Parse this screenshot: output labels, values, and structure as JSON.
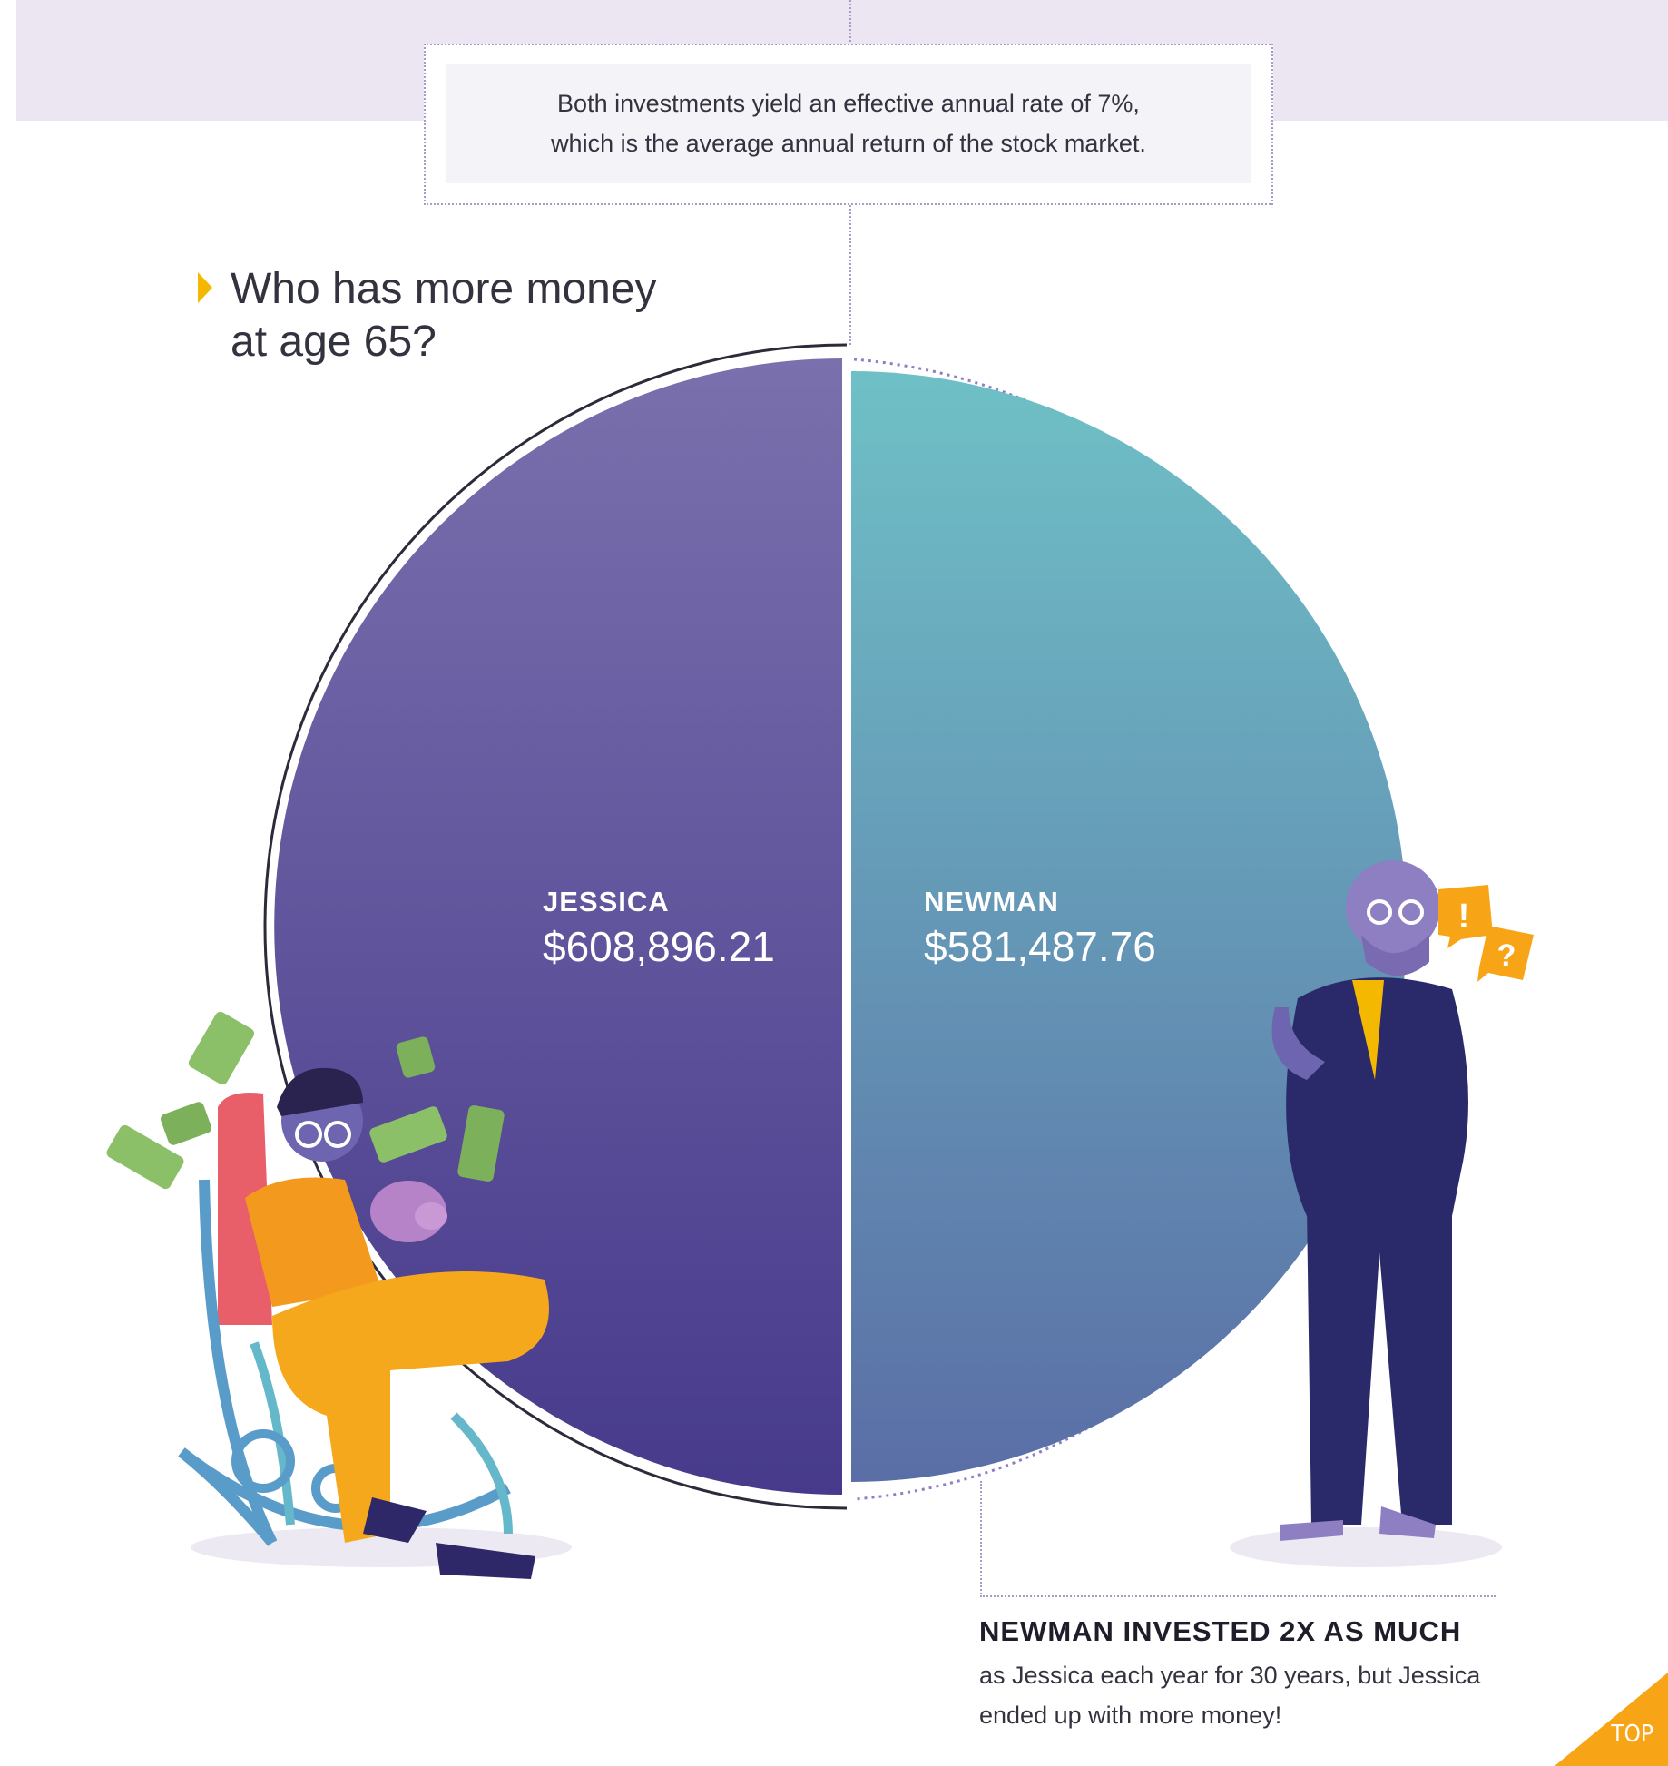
{
  "note": {
    "line1": "Both investments yield an effective annual rate of 7%,",
    "line2": "which is the average annual return of the stock market."
  },
  "question": {
    "line1": "Who has more money",
    "line2": "at age 65?"
  },
  "chart_data": {
    "type": "pie",
    "title": "",
    "slices": [
      {
        "name": "JESSICA",
        "label": "$608,896.21",
        "value": 608896.21,
        "color": "#5b4ea0"
      },
      {
        "name": "NEWMAN",
        "label": "$581,487.76",
        "value": 581487.76,
        "color": "#5f8fb0"
      }
    ]
  },
  "caption": {
    "headline": "NEWMAN INVESTED 2X AS MUCH",
    "body_line1": "as Jessica each year for 30 years, but Jessica",
    "body_line2": "ended up with more money!"
  },
  "top_button": {
    "label": "TOP",
    "color": "#f7a516"
  }
}
